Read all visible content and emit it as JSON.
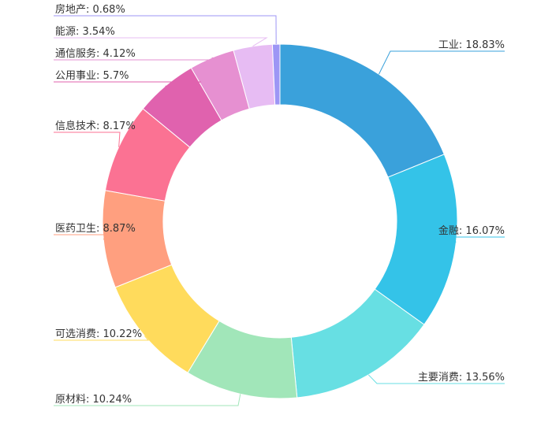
{
  "chart_data": {
    "type": "pie",
    "variant": "donut",
    "slices": [
      {
        "name": "工业",
        "value": 18.83,
        "label": "工业: 18.83%",
        "color": "#3aa1db"
      },
      {
        "name": "金融",
        "value": 16.07,
        "label": "金融: 16.07%",
        "color": "#34c3e8"
      },
      {
        "name": "主要消费",
        "value": 13.56,
        "label": "主要消费: 13.56%",
        "color": "#67dfe3"
      },
      {
        "name": "原材料",
        "value": 10.24,
        "label": "原材料: 10.24%",
        "color": "#a1e6b9"
      },
      {
        "name": "可选消费",
        "value": 10.22,
        "label": "可选消费: 10.22%",
        "color": "#ffdb5c"
      },
      {
        "name": "医药卫生",
        "value": 8.87,
        "label": "医药卫生: 8.87%",
        "color": "#ff9f7f"
      },
      {
        "name": "信息技术",
        "value": 8.17,
        "label": "信息技术: 8.17%",
        "color": "#fb7293"
      },
      {
        "name": "公用事业",
        "value": 5.7,
        "label": "公用事业: 5.7%",
        "color": "#e062ae"
      },
      {
        "name": "通信服务",
        "value": 4.12,
        "label": "通信服务: 4.12%",
        "color": "#e690d1"
      },
      {
        "name": "能源",
        "value": 3.54,
        "label": "能源: 3.54%",
        "color": "#e7bcf3"
      },
      {
        "name": "房地产",
        "value": 0.68,
        "label": "房地产: 0.68%",
        "color": "#9d96f5"
      }
    ]
  }
}
